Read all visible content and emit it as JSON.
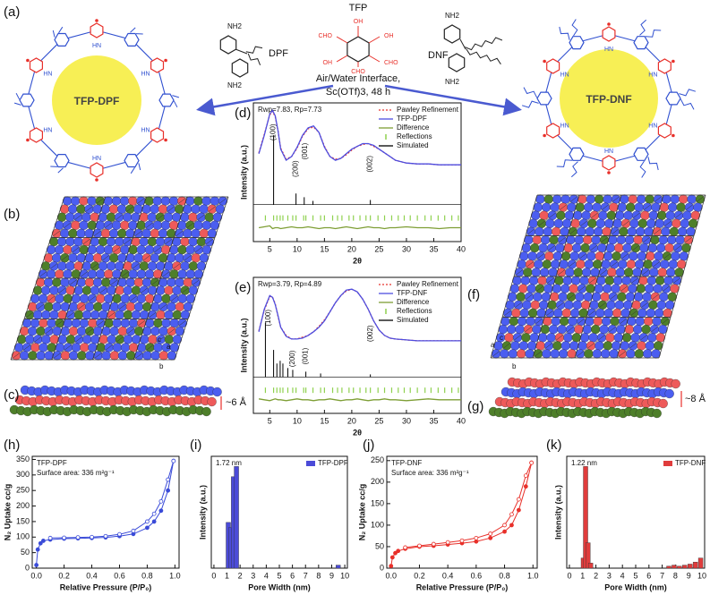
{
  "figure": {
    "panel_a": {
      "label": "(a)",
      "left_product": "TFP-DPF",
      "right_product": "TFP-DNF",
      "dpf": "DPF",
      "tfp": "TFP",
      "dnf": "DNF",
      "condition_1": "Air/Water Interface,",
      "condition_2": "Sc(OTf)3, 48 h",
      "amine": "NH2",
      "aldehyde": "CHO",
      "hydroxyl": "OH",
      "link_label": "HN"
    },
    "panel_b": {
      "label": "(b)",
      "axes": [
        "c",
        "a",
        "b"
      ]
    },
    "panel_c": {
      "label": "(c)",
      "spacing": "~6 Å"
    },
    "panel_f": {
      "label": "(f)",
      "axes": [
        "a",
        "c",
        "b"
      ]
    },
    "panel_g": {
      "label": "(g)",
      "spacing": "~8 Å"
    }
  },
  "chart_data": [
    {
      "type": "line",
      "panel_label": "(d)",
      "annotations": [
        "Rwp=7.83, Rp=7.73"
      ],
      "xlabel": "2θ",
      "ylabel": "Intensity (a.u.)",
      "xlim": [
        2,
        40
      ],
      "xticks": [
        5,
        10,
        15,
        20,
        25,
        30,
        35,
        40
      ],
      "ylim": [
        -40,
        110
      ],
      "legend": true,
      "x": [
        3,
        4,
        5,
        5.5,
        6,
        6.5,
        7,
        8,
        9,
        10,
        11,
        12,
        13,
        14,
        15,
        16,
        17,
        18,
        19,
        20,
        21,
        22,
        23,
        24,
        25,
        26,
        27,
        28,
        30,
        32,
        34,
        36,
        38,
        40
      ],
      "series": [
        {
          "name": "Pawley Refinement",
          "color": "#e8352f",
          "dash": true,
          "values": [
            56,
            76,
            97,
            101,
            95,
            80,
            61,
            49,
            52,
            61,
            74,
            82,
            84,
            78,
            63,
            52,
            49,
            50,
            54,
            59,
            63,
            65,
            66,
            63,
            60,
            56,
            52,
            48,
            45,
            44,
            44,
            43,
            43,
            43
          ]
        },
        {
          "name": "TFP-DPF",
          "color": "#4d4de0",
          "values": [
            55,
            75,
            98,
            102,
            96,
            80,
            60,
            48,
            52,
            62,
            75,
            83,
            85,
            78,
            62,
            52,
            48,
            50,
            55,
            60,
            63,
            66,
            66,
            64,
            60,
            56,
            52,
            48,
            45,
            44,
            44,
            43,
            43,
            43
          ]
        },
        {
          "name": "Difference",
          "color": "#7e9e35",
          "values": [
            -25,
            -24,
            -23,
            -26,
            -25,
            -25,
            -26,
            -25,
            -24,
            -25,
            -25,
            -24,
            -25,
            -26,
            -25,
            -25,
            -26,
            -25,
            -24,
            -25,
            -26,
            -25,
            -24,
            -25,
            -25,
            -26,
            -25,
            -25,
            -24,
            -25,
            -25,
            -26,
            -25,
            -25
          ]
        }
      ],
      "reflections": {
        "name": "Reflections",
        "color": "#8fd14f",
        "x": [
          4.2,
          5.7,
          6.3,
          6.9,
          7.4,
          8.3,
          9.2,
          9.8,
          11.2,
          11.6,
          12.9,
          14.3,
          15,
          16.5,
          17.4,
          18.2,
          19.5,
          20.3,
          21.5,
          22.6,
          23.4,
          24.8,
          26,
          27.3,
          28.5,
          29.6,
          30.7,
          32,
          33.4,
          34.5,
          35.8,
          37,
          38.3,
          39.5
        ]
      },
      "simulated": {
        "name": "Simulated",
        "color": "#000000",
        "x": [
          5.7,
          9.8,
          11.3,
          12.9,
          23.4
        ],
        "values": [
          75,
          12,
          8,
          4,
          5
        ]
      },
      "peak_labels": [
        {
          "text": "(100)",
          "x": 5.7
        },
        {
          "text": "(200)",
          "x": 9.8
        },
        {
          "text": "(001)",
          "x": 11.5
        },
        {
          "text": "(002)",
          "x": 23.4
        }
      ]
    },
    {
      "type": "line",
      "panel_label": "(e)",
      "annotations": [
        "Rwp=3.79, Rp=4.89"
      ],
      "xlabel": "2θ",
      "ylabel": "Intensity (a.u.)",
      "xlim": [
        2,
        40
      ],
      "xticks": [
        5,
        10,
        15,
        20,
        25,
        30,
        35,
        40
      ],
      "ylim": [
        -40,
        110
      ],
      "legend": true,
      "x": [
        3,
        4,
        5,
        5.5,
        6,
        6.5,
        7,
        8,
        9,
        10,
        11,
        12,
        13,
        14,
        15,
        16,
        17,
        18,
        19,
        20,
        21,
        22,
        23,
        24,
        25,
        26,
        27,
        28,
        30,
        32,
        34,
        36,
        38,
        40
      ],
      "series": [
        {
          "name": "Pawley Refinement",
          "color": "#e8352f",
          "dash": true,
          "values": [
            51,
            74,
            89,
            88,
            81,
            67,
            55,
            46,
            42,
            42,
            44,
            46,
            50,
            56,
            63,
            72,
            82,
            90,
            95,
            97,
            94,
            86,
            75,
            62,
            52,
            46,
            43,
            42,
            41,
            40,
            40,
            40,
            40,
            40
          ]
        },
        {
          "name": "TFP-DNF",
          "color": "#4d4de0",
          "values": [
            50,
            75,
            90,
            88,
            80,
            68,
            55,
            45,
            42,
            42,
            43,
            46,
            50,
            55,
            62,
            72,
            82,
            90,
            96,
            97,
            94,
            86,
            75,
            62,
            52,
            46,
            43,
            42,
            41,
            40,
            40,
            40,
            40,
            40
          ]
        },
        {
          "name": "Difference",
          "color": "#7e9e35",
          "values": [
            -24,
            -25,
            -26,
            -25,
            -24,
            -25,
            -25,
            -26,
            -25,
            -24,
            -25,
            -25,
            -26,
            -25,
            -25,
            -24,
            -25,
            -26,
            -25,
            -25,
            -24,
            -25,
            -26,
            -25,
            -25,
            -24,
            -25,
            -25,
            -26,
            -25,
            -24,
            -25,
            -25,
            -25
          ]
        }
      ],
      "reflections": {
        "name": "Reflections",
        "color": "#8fd14f",
        "x": [
          4.2,
          5.7,
          6.3,
          6.9,
          7.4,
          8.3,
          9.2,
          9.8,
          11.2,
          11.6,
          12.9,
          14.3,
          15,
          16.5,
          17.4,
          18.2,
          19.5,
          20.3,
          21.5,
          22.6,
          23.4,
          24.8,
          26,
          27.3,
          28.5,
          29.6,
          30.7,
          32,
          33.4,
          34.5,
          35.8,
          37,
          38.3,
          39.5
        ]
      },
      "simulated": {
        "name": "Simulated",
        "color": "#000000",
        "x": [
          4.2,
          5.7,
          6.3,
          6.9,
          7.4,
          8.3,
          9.2,
          11.6,
          14.3,
          23.4
        ],
        "values": [
          60,
          30,
          15,
          18,
          15,
          10,
          8,
          6,
          4,
          3
        ]
      },
      "peak_labels": [
        {
          "text": "(100)",
          "x": 4.8
        },
        {
          "text": "(200)",
          "x": 9.2
        },
        {
          "text": "(001)",
          "x": 11.6
        },
        {
          "text": "(002)",
          "x": 23.4
        }
      ]
    },
    {
      "type": "line",
      "panel_label": "(h)",
      "annotations": [
        "TFP-DPF",
        "Surface area: 336 m²g⁻¹"
      ],
      "xlabel": "Relative Pressure (P/P₀)",
      "ylabel": "N₂ Uptake cc/g",
      "xlim": [
        -0.03,
        1.03
      ],
      "xticks": [
        {
          "value": 0,
          "label": "0.0"
        },
        0.2,
        0.4,
        0.6,
        0.8,
        {
          "value": 1,
          "label": "1.0"
        }
      ],
      "ylim": [
        0,
        360
      ],
      "yticks": [
        0,
        50,
        100,
        150,
        200,
        250,
        300,
        350
      ],
      "x": [
        0,
        0.01,
        0.03,
        0.05,
        0.1,
        0.2,
        0.3,
        0.4,
        0.5,
        0.6,
        0.7,
        0.8,
        0.85,
        0.9,
        0.95,
        0.99
      ],
      "series": [
        {
          "color": "#3a4bd8",
          "marker": "filled",
          "values": [
            10,
            60,
            80,
            88,
            92,
            95,
            96,
            97,
            99,
            103,
            110,
            130,
            150,
            185,
            250,
            345
          ]
        },
        {
          "color": "#3a4bd8",
          "marker": "open",
          "values": [
            null,
            null,
            null,
            null,
            97,
            98,
            99,
            100,
            103,
            109,
            120,
            150,
            175,
            215,
            285,
            345
          ]
        }
      ]
    },
    {
      "type": "bar",
      "panel_label": "(i)",
      "annotations": [
        "1.72 nm"
      ],
      "xlabel": "Pore Width (nm)",
      "ylabel": "Intensity (a.u.)",
      "xlim": [
        -0.2,
        10.2
      ],
      "xticks": [
        0,
        1,
        2,
        3,
        4,
        5,
        6,
        7,
        8,
        9,
        10
      ],
      "ylim": [
        0,
        110
      ],
      "legend": true,
      "x": [
        1.1,
        1.3,
        1.5,
        1.72,
        9.5
      ],
      "series": [
        {
          "name": "TFP-DPF",
          "color": "#4b4bd8",
          "values": [
            45,
            40,
            90,
            100,
            3
          ]
        }
      ]
    },
    {
      "type": "line",
      "panel_label": "(j)",
      "annotations": [
        "TFP-DNF",
        "Surface area: 336 m²g⁻¹"
      ],
      "xlabel": "Relative Pressure (P/P₀)",
      "ylabel": "N₂ Uptake cc/g",
      "xlim": [
        -0.03,
        1.03
      ],
      "xticks": [
        {
          "value": 0,
          "label": "0.0"
        },
        0.2,
        0.4,
        0.6,
        0.8,
        {
          "value": 1,
          "label": "1.0"
        }
      ],
      "ylim": [
        0,
        260
      ],
      "yticks": [
        0,
        50,
        100,
        150,
        200,
        250
      ],
      "x": [
        0,
        0.01,
        0.03,
        0.05,
        0.1,
        0.2,
        0.3,
        0.4,
        0.5,
        0.6,
        0.7,
        0.8,
        0.85,
        0.9,
        0.95,
        0.99
      ],
      "series": [
        {
          "color": "#e8302a",
          "marker": "filled",
          "values": [
            5,
            25,
            35,
            40,
            45,
            50,
            52,
            55,
            58,
            62,
            70,
            85,
            100,
            135,
            190,
            245
          ]
        },
        {
          "color": "#e8302a",
          "marker": "open",
          "values": [
            null,
            null,
            null,
            null,
            48,
            52,
            56,
            60,
            64,
            70,
            80,
            100,
            125,
            160,
            215,
            245
          ]
        }
      ]
    },
    {
      "type": "bar",
      "panel_label": "(k)",
      "annotations": [
        "1.22 nm"
      ],
      "xlabel": "Pore Width (nm)",
      "ylabel": "Intensity (a.u.)",
      "xlim": [
        -0.2,
        10.2
      ],
      "xticks": [
        0,
        1,
        2,
        3,
        4,
        5,
        6,
        7,
        8,
        9,
        10
      ],
      "ylim": [
        0,
        110
      ],
      "legend": true,
      "x": [
        1.05,
        1.22,
        1.4,
        1.6,
        7.5,
        7.9,
        8.3,
        8.7,
        9.1,
        9.5,
        9.9
      ],
      "series": [
        {
          "name": "TFP-DNF",
          "color": "#e03c3c",
          "values": [
            10,
            100,
            25,
            5,
            2,
            3,
            2,
            3,
            4,
            6,
            10
          ]
        }
      ]
    }
  ]
}
